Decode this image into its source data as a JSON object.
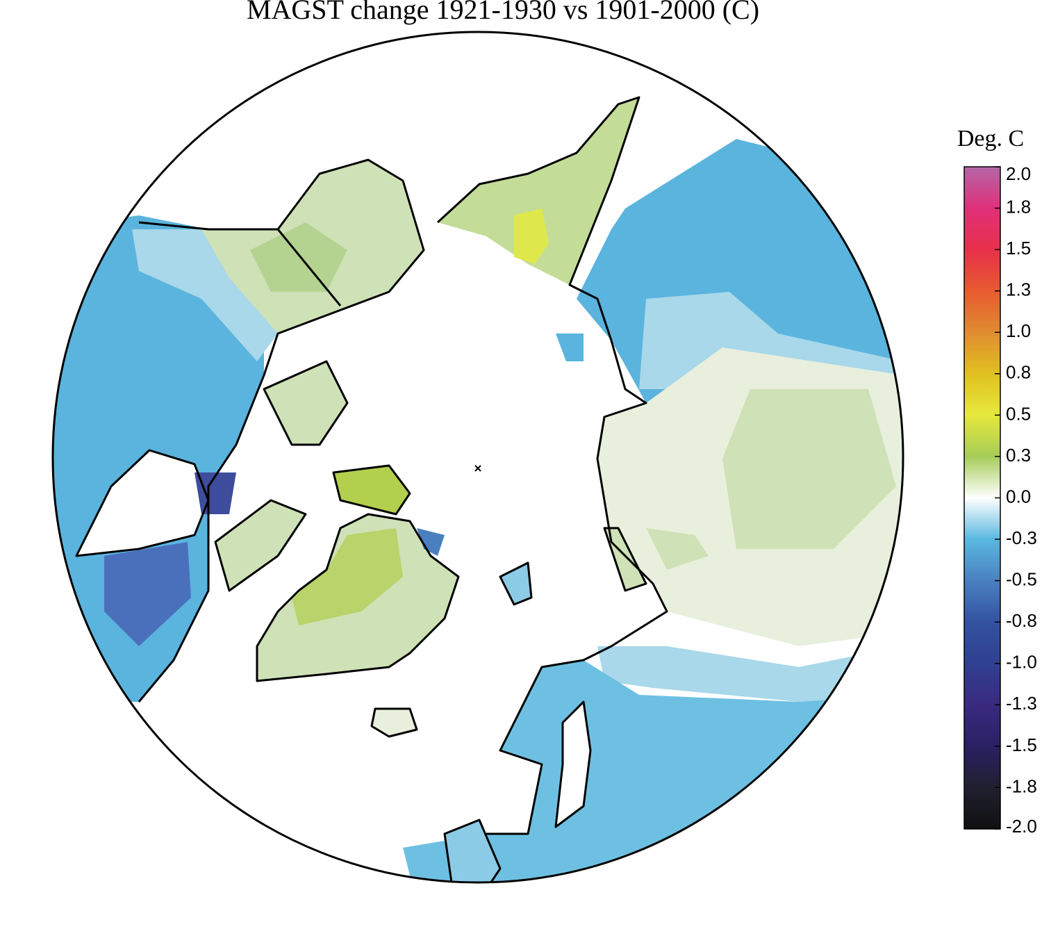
{
  "title": "MAGST change 1921-1930 vs 1901-2000 (C)",
  "colorbar": {
    "label": "Deg. C",
    "lim": [
      -2,
      2
    ],
    "ticks": [
      {
        "value": 2,
        "label": "2.0"
      },
      {
        "value": 1.75,
        "label": "1.8"
      },
      {
        "value": 1.5,
        "label": "1.5"
      },
      {
        "value": 1.25,
        "label": "1.3"
      },
      {
        "value": 1,
        "label": "1.0"
      },
      {
        "value": 0.75,
        "label": "0.8"
      },
      {
        "value": 0.5,
        "label": "0.5"
      },
      {
        "value": 0.25,
        "label": "0.3"
      },
      {
        "value": 0,
        "label": "0.0"
      },
      {
        "value": -0.25,
        "label": "-0.3"
      },
      {
        "value": -0.5,
        "label": "-0.5"
      },
      {
        "value": -0.75,
        "label": "-0.8"
      },
      {
        "value": -1,
        "label": "-1.0"
      },
      {
        "value": -1.25,
        "label": "-1.3"
      },
      {
        "value": -1.5,
        "label": "-1.5"
      },
      {
        "value": -1.75,
        "label": "-1.8"
      },
      {
        "value": -2,
        "label": "-2.0"
      }
    ],
    "colormap": [
      {
        "value": 2,
        "color": "#b466a6"
      },
      {
        "value": 1.75,
        "color": "#e0307a"
      },
      {
        "value": 1.5,
        "color": "#e8304a"
      },
      {
        "value": 1.25,
        "color": "#e85a30"
      },
      {
        "value": 1,
        "color": "#e08c30"
      },
      {
        "value": 0.75,
        "color": "#e0c020"
      },
      {
        "value": 0.5,
        "color": "#e6e83c"
      },
      {
        "value": 0.25,
        "color": "#a6cc58"
      },
      {
        "value": 0,
        "color": "#ffffff"
      },
      {
        "value": -0.25,
        "color": "#5ab8e0"
      },
      {
        "value": -0.5,
        "color": "#4a80c0"
      },
      {
        "value": -0.75,
        "color": "#3252a0"
      },
      {
        "value": -1,
        "color": "#304090"
      },
      {
        "value": -1.25,
        "color": "#3a2a80"
      },
      {
        "value": -1.5,
        "color": "#2a2064"
      },
      {
        "value": -1.75,
        "color": "#202030"
      },
      {
        "value": -2,
        "color": "#101010"
      }
    ]
  }
}
